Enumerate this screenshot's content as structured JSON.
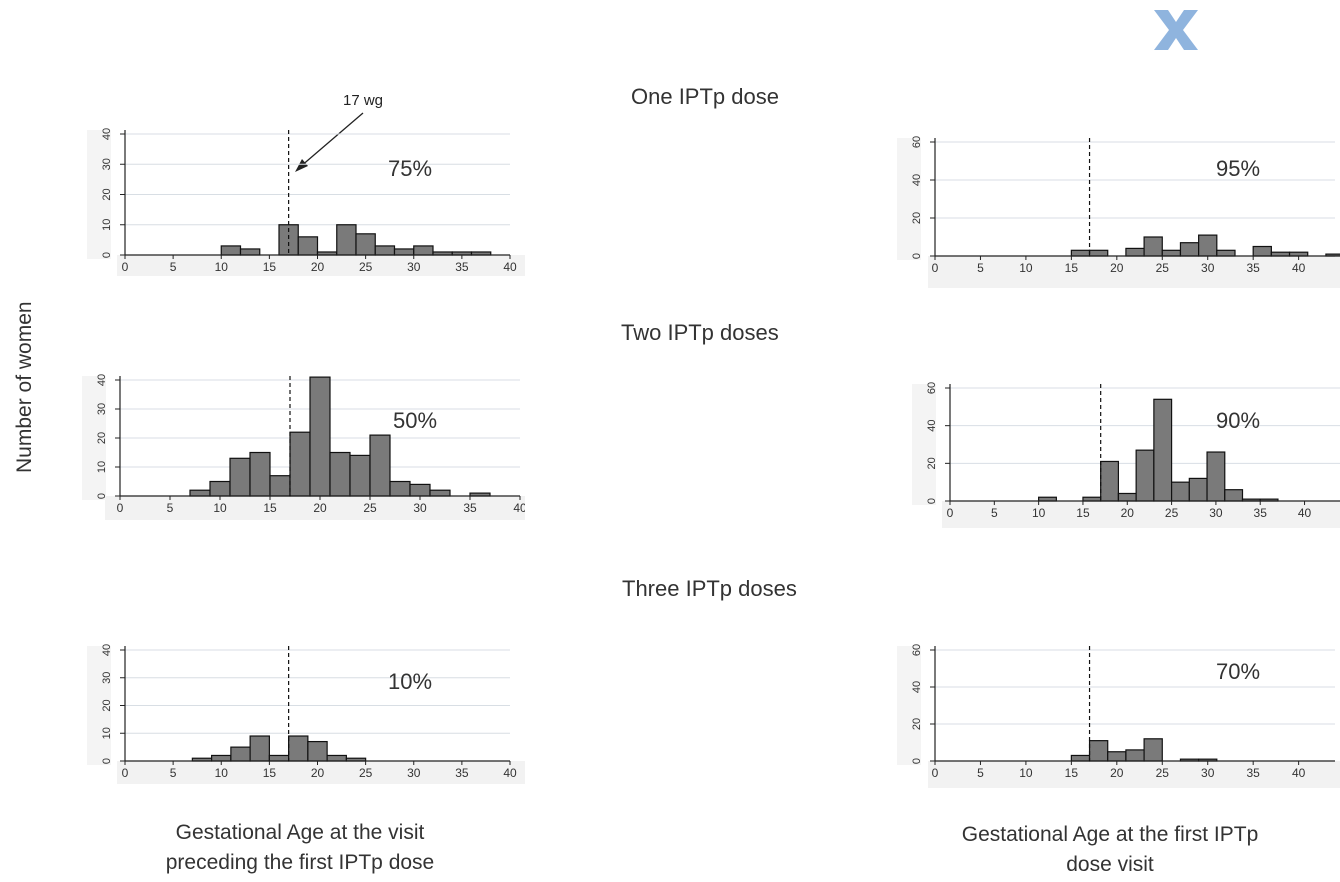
{
  "section_titles": [
    "One IPTp dose",
    "Two IPTp doses",
    "Three IPTp doses"
  ],
  "y_axis_label": "Number of women",
  "x_axis_labels": {
    "left": [
      "Gestational Age at the visit",
      "preceding the first IPTp dose"
    ],
    "right": [
      "Gestational Age at the first IPTp",
      "dose visit"
    ]
  },
  "annotation": {
    "text": "17 wg"
  },
  "logo": {
    "name": "x-logo",
    "color": "#8fb4de"
  },
  "colors": {
    "bar": "#7a7a7a",
    "bar_stroke": "#111111",
    "grid": "#d8dee4",
    "axis": "#222222"
  },
  "chart_data": [
    {
      "type": "bar",
      "id": "one-dose-preceding",
      "title": "",
      "xlabel": "",
      "ylabel": "",
      "percent_label": "75%",
      "cutoff": 17,
      "xlim": [
        0,
        40
      ],
      "xticks": [
        0,
        5,
        10,
        15,
        20,
        25,
        30,
        35,
        40
      ],
      "ylim": [
        0,
        40
      ],
      "yticks": [
        0,
        10,
        20,
        30,
        40
      ],
      "ytick_labels": [
        "0",
        "10",
        "20",
        "30",
        "40"
      ],
      "bins": [
        [
          10,
          12,
          3
        ],
        [
          12,
          14,
          2
        ],
        [
          16,
          18,
          10
        ],
        [
          18,
          20,
          6
        ],
        [
          20,
          22,
          1
        ],
        [
          22,
          24,
          10
        ],
        [
          24,
          26,
          7
        ],
        [
          26,
          28,
          3
        ],
        [
          28,
          30,
          2
        ],
        [
          30,
          32,
          3
        ],
        [
          32,
          34,
          1
        ],
        [
          34,
          36,
          1
        ],
        [
          36,
          38,
          1
        ]
      ]
    },
    {
      "type": "bar",
      "id": "one-dose-first",
      "title": "",
      "xlabel": "",
      "ylabel": "",
      "percent_label": "95%",
      "cutoff": 17,
      "xlim": [
        0,
        44
      ],
      "xticks": [
        0,
        5,
        10,
        15,
        20,
        25,
        30,
        35,
        40
      ],
      "ylim": [
        0,
        60
      ],
      "yticks": [
        0,
        20,
        40,
        60
      ],
      "ytick_labels": [
        "0",
        "20",
        "40",
        "60"
      ],
      "bins": [
        [
          15,
          17,
          3
        ],
        [
          17,
          19,
          3
        ],
        [
          21,
          23,
          4
        ],
        [
          23,
          25,
          10
        ],
        [
          25,
          27,
          3
        ],
        [
          27,
          29,
          7
        ],
        [
          29,
          31,
          11
        ],
        [
          31,
          33,
          3
        ],
        [
          35,
          37,
          5
        ],
        [
          37,
          39,
          2
        ],
        [
          39,
          41,
          2
        ],
        [
          43,
          45,
          1
        ]
      ]
    },
    {
      "type": "bar",
      "id": "two-doses-preceding",
      "title": "",
      "xlabel": "",
      "ylabel": "",
      "percent_label": "50%",
      "cutoff": 17,
      "xlim": [
        0,
        40
      ],
      "xticks": [
        0,
        5,
        10,
        15,
        20,
        25,
        30,
        35,
        40
      ],
      "ylim": [
        0,
        40
      ],
      "yticks": [
        0,
        10,
        20,
        30,
        40
      ],
      "ytick_labels": [
        "0",
        "10",
        "20",
        "30",
        "40"
      ],
      "bins": [
        [
          7,
          9,
          2
        ],
        [
          9,
          11,
          5
        ],
        [
          11,
          13,
          13
        ],
        [
          13,
          15,
          15
        ],
        [
          15,
          17,
          7
        ],
        [
          17,
          19,
          22
        ],
        [
          19,
          21,
          41
        ],
        [
          21,
          23,
          15
        ],
        [
          23,
          25,
          14
        ],
        [
          25,
          27,
          21
        ],
        [
          27,
          29,
          5
        ],
        [
          29,
          31,
          4
        ],
        [
          31,
          33,
          2
        ],
        [
          35,
          37,
          1
        ]
      ]
    },
    {
      "type": "bar",
      "id": "two-doses-first",
      "title": "",
      "xlabel": "",
      "ylabel": "",
      "percent_label": "90%",
      "cutoff": 17,
      "xlim": [
        0,
        44
      ],
      "xticks": [
        0,
        5,
        10,
        15,
        20,
        25,
        30,
        35,
        40
      ],
      "ylim": [
        0,
        60
      ],
      "yticks": [
        0,
        20,
        40,
        60
      ],
      "ytick_labels": [
        "0",
        "20",
        "40",
        "60"
      ],
      "bins": [
        [
          10,
          12,
          2
        ],
        [
          15,
          17,
          2
        ],
        [
          17,
          19,
          21
        ],
        [
          19,
          21,
          4
        ],
        [
          21,
          23,
          27
        ],
        [
          23,
          25,
          54
        ],
        [
          25,
          27,
          10
        ],
        [
          27,
          29,
          12
        ],
        [
          29,
          31,
          26
        ],
        [
          31,
          33,
          6
        ],
        [
          33,
          35,
          1
        ],
        [
          35,
          37,
          1
        ]
      ]
    },
    {
      "type": "bar",
      "id": "three-doses-preceding",
      "title": "",
      "xlabel": "",
      "ylabel": "",
      "percent_label": "10%",
      "cutoff": 17,
      "xlim": [
        0,
        40
      ],
      "xticks": [
        0,
        5,
        10,
        15,
        20,
        25,
        30,
        35,
        40
      ],
      "ylim": [
        0,
        40
      ],
      "yticks": [
        0,
        10,
        20,
        30,
        40
      ],
      "ytick_labels": [
        "0",
        "10",
        "20",
        "30",
        "40"
      ],
      "bins": [
        [
          7,
          9,
          1
        ],
        [
          9,
          11,
          2
        ],
        [
          11,
          13,
          5
        ],
        [
          13,
          15,
          9
        ],
        [
          15,
          17,
          2
        ],
        [
          17,
          19,
          9
        ],
        [
          19,
          21,
          7
        ],
        [
          21,
          23,
          2
        ],
        [
          23,
          25,
          1
        ]
      ]
    },
    {
      "type": "bar",
      "id": "three-doses-first",
      "title": "",
      "xlabel": "",
      "ylabel": "",
      "percent_label": "70%",
      "cutoff": 17,
      "xlim": [
        0,
        44
      ],
      "xticks": [
        0,
        5,
        10,
        15,
        20,
        25,
        30,
        35,
        40
      ],
      "ylim": [
        0,
        60
      ],
      "yticks": [
        0,
        20,
        40,
        60
      ],
      "ytick_labels": [
        "0",
        "20",
        "40",
        "60"
      ],
      "bins": [
        [
          15,
          17,
          3
        ],
        [
          17,
          19,
          11
        ],
        [
          19,
          21,
          5
        ],
        [
          21,
          23,
          6
        ],
        [
          23,
          25,
          12
        ],
        [
          27,
          29,
          1
        ],
        [
          29,
          31,
          1
        ]
      ]
    }
  ]
}
